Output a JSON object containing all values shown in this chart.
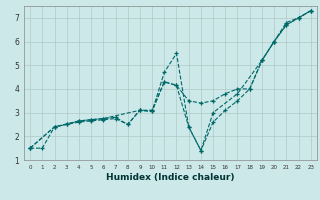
{
  "xlabel": "Humidex (Indice chaleur)",
  "bg_color": "#cce8e8",
  "grid_color": "#b0c8c8",
  "line_color": "#006868",
  "xlim": [
    -0.5,
    23.5
  ],
  "ylim": [
    1,
    7.5
  ],
  "xticks": [
    0,
    1,
    2,
    3,
    4,
    5,
    6,
    7,
    8,
    9,
    10,
    11,
    12,
    13,
    14,
    15,
    16,
    17,
    18,
    19,
    20,
    21,
    22,
    23
  ],
  "yticks": [
    1,
    2,
    3,
    4,
    5,
    6,
    7
  ],
  "line1_x": [
    0,
    1,
    2,
    3,
    4,
    5,
    6,
    7,
    8,
    9,
    10,
    11,
    12,
    13,
    14,
    15,
    16,
    17,
    18,
    19,
    20,
    21,
    22,
    23
  ],
  "line1_y": [
    1.5,
    1.5,
    2.4,
    2.5,
    2.65,
    2.7,
    2.75,
    2.8,
    2.5,
    3.1,
    3.05,
    4.7,
    5.5,
    2.4,
    1.4,
    2.6,
    3.1,
    3.5,
    4.0,
    5.2,
    6.0,
    6.8,
    7.0,
    7.3
  ],
  "line2_x": [
    0,
    2,
    3,
    4,
    5,
    6,
    7,
    8,
    9,
    10,
    11,
    12,
    13,
    14,
    15,
    16,
    17,
    18,
    19,
    20,
    21,
    22,
    23
  ],
  "line2_y": [
    1.5,
    2.4,
    2.5,
    2.6,
    2.65,
    2.7,
    2.75,
    2.5,
    3.1,
    3.1,
    4.3,
    4.15,
    3.5,
    3.4,
    3.5,
    3.8,
    4.0,
    4.0,
    5.2,
    6.0,
    6.7,
    7.0,
    7.3
  ],
  "line3_x": [
    0,
    2,
    4,
    5,
    6,
    9,
    10,
    11,
    12,
    13,
    14,
    15,
    17,
    19,
    20,
    21,
    22,
    23
  ],
  "line3_y": [
    1.5,
    2.4,
    2.65,
    2.7,
    2.75,
    3.1,
    3.05,
    4.3,
    4.15,
    2.4,
    1.4,
    3.0,
    3.8,
    5.2,
    6.0,
    6.7,
    7.0,
    7.3
  ]
}
